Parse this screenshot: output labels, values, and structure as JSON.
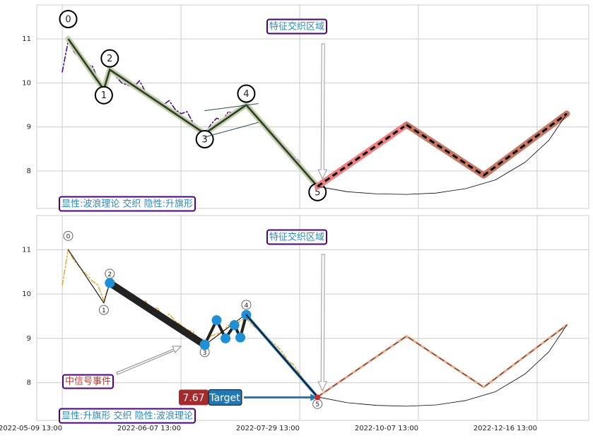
{
  "chart_data": [
    {
      "type": "line",
      "annotation": "特征交织区域",
      "footnote": "显性:波浪理论 交织 隐性:升旗形",
      "xlim": [
        -4.3,
        88.7
      ],
      "ylim": [
        7.15,
        11.77
      ],
      "yticks": [
        8,
        9,
        10,
        11
      ],
      "grid": true,
      "series": [
        {
          "color": "#4b0082",
          "linestyle": "dashdot",
          "linewidth": 1.5,
          "x": [
            0,
            1,
            2,
            3,
            4,
            5,
            6,
            7,
            8,
            9,
            10,
            11,
            12,
            13,
            14,
            15,
            16,
            17,
            18,
            19,
            20,
            21,
            22,
            23,
            24,
            25,
            26,
            27,
            28,
            29,
            30,
            31,
            32,
            33,
            34,
            35,
            36,
            37,
            38,
            39,
            40,
            41,
            42,
            43
          ],
          "values": [
            10.25,
            10.95,
            10.7,
            10.55,
            10.35,
            10.4,
            10.1,
            9.9,
            10.3,
            10.15,
            10.0,
            9.95,
            9.9,
            10.05,
            9.8,
            9.7,
            9.65,
            9.5,
            9.6,
            9.4,
            9.3,
            9.35,
            9.1,
            9.0,
            8.85,
            9.05,
            9.2,
            9.15,
            9.35,
            9.3,
            9.45,
            9.5,
            9.3,
            9.15,
            9.0,
            8.95,
            8.8,
            8.6,
            8.5,
            8.35,
            8.2,
            7.95,
            7.8,
            7.65
          ]
        },
        {
          "color": "#c5d1a8",
          "inner_color": "#2f3f2f",
          "linestyle": "solid",
          "linewidth": 8,
          "x": [
            1,
            7,
            8,
            24,
            31,
            43
          ],
          "values": [
            11.0,
            9.85,
            10.3,
            8.85,
            9.5,
            7.65
          ],
          "labels": [
            "0",
            "1",
            "2",
            "3",
            "4",
            "5"
          ]
        },
        {
          "color": "#2f4f4f",
          "linestyle": "solid",
          "linewidth": 1,
          "x": [
            24,
            33
          ],
          "values": [
            9.37,
            9.53
          ]
        },
        {
          "color": "#2f4f4f",
          "linestyle": "solid",
          "linewidth": 1,
          "x": [
            24,
            33
          ],
          "values": [
            8.77,
            9.1
          ]
        },
        {
          "color": "#f08080",
          "inner_color": "#000000",
          "linestyle": "dashed",
          "linewidth": 9,
          "x": [
            43,
            58
          ],
          "values": [
            7.65,
            9.05
          ]
        },
        {
          "color": "#c87860",
          "inner_color": "#000000",
          "linestyle": "dashed",
          "linewidth": 9,
          "x": [
            58,
            71,
            85
          ],
          "values": [
            9.05,
            7.9,
            9.3
          ]
        },
        {
          "color": "#000000",
          "linestyle": "solid",
          "linewidth": 0.8,
          "x": [
            43,
            48,
            53,
            58,
            63,
            68,
            73,
            78,
            82,
            85
          ],
          "values": [
            7.65,
            7.53,
            7.48,
            7.47,
            7.5,
            7.6,
            7.8,
            8.2,
            8.7,
            9.3
          ]
        }
      ]
    },
    {
      "type": "line",
      "annotation": "特征交织区域",
      "footnote": "显性:升旗形 交织 隐性:波浪理论",
      "signal": "中信号事件",
      "xlim": [
        -4.3,
        88.7
      ],
      "ylim": [
        7.15,
        11.77
      ],
      "yticks": [
        8,
        9,
        10,
        11
      ],
      "grid": true,
      "xticks": [
        {
          "value": 0,
          "label": "2022-05-09 13:00"
        },
        {
          "value": 20,
          "label": "2022-06-07 13:00"
        },
        {
          "value": 40,
          "label": "2022-07-29 13:00"
        },
        {
          "value": 60,
          "label": "2022-10-07 13:00"
        },
        {
          "value": 80,
          "label": "2022-12-16 13:00"
        }
      ],
      "target": {
        "value": 7.67,
        "label": "Target"
      },
      "series": [
        {
          "color": "#e8a72a",
          "linestyle": "dashdot",
          "linewidth": 1.5,
          "x": [
            0,
            1,
            2,
            3,
            4,
            5,
            6,
            7,
            8,
            9,
            10,
            11,
            12,
            13,
            14,
            15,
            16,
            17,
            18,
            19,
            20,
            21,
            22,
            23,
            24,
            25,
            26,
            27,
            28,
            29,
            30,
            31,
            32,
            33,
            34,
            35,
            36,
            37,
            38,
            39,
            40,
            41,
            42,
            43
          ],
          "values": [
            10.2,
            11.0,
            10.75,
            10.6,
            10.45,
            10.3,
            10.2,
            9.85,
            10.25,
            10.15,
            10.1,
            9.9,
            10.0,
            9.75,
            9.85,
            9.6,
            9.7,
            9.45,
            9.55,
            9.4,
            9.3,
            9.2,
            9.15,
            9.0,
            8.9,
            9.05,
            9.1,
            9.15,
            9.3,
            9.25,
            9.4,
            9.45,
            9.3,
            9.2,
            9.1,
            8.95,
            8.85,
            8.7,
            8.5,
            8.4,
            8.2,
            8.0,
            7.8,
            7.68
          ]
        },
        {
          "color": "#000000",
          "linestyle": "solid",
          "linewidth": 1,
          "x": [
            1,
            7,
            8,
            24,
            31,
            43
          ],
          "values": [
            11.0,
            9.8,
            10.25,
            8.85,
            9.55,
            7.68
          ],
          "labels": [
            "0",
            "1",
            "2",
            "3",
            "4",
            "5"
          ]
        },
        {
          "color": "#222222",
          "linestyle": "solid",
          "linewidth": 10,
          "marker_color": "#1e90d8",
          "x": [
            8,
            24
          ],
          "values": [
            10.25,
            8.85
          ]
        },
        {
          "color": "#222222",
          "linestyle": "solid",
          "linewidth": 4,
          "marker_color": "#1e90d8",
          "x": [
            24,
            26,
            27.5,
            29,
            30,
            31
          ],
          "values": [
            8.86,
            9.41,
            9.0,
            9.3,
            9.02,
            9.53
          ]
        },
        {
          "color": "#1f77b4",
          "inner_color": "#000000",
          "linestyle": "solid",
          "linewidth": 4,
          "x": [
            31,
            43
          ],
          "values": [
            9.53,
            7.68
          ]
        },
        {
          "color": "#f4a582",
          "inner_color": "#333333",
          "linestyle": "dashed",
          "linewidth": 3,
          "x": [
            43,
            58,
            71,
            85
          ],
          "values": [
            7.68,
            9.05,
            7.9,
            9.3
          ]
        },
        {
          "color": "#000000",
          "linestyle": "solid",
          "linewidth": 0.8,
          "x": [
            43,
            48,
            53,
            58,
            63,
            68,
            73,
            78,
            82,
            85
          ],
          "values": [
            7.68,
            7.55,
            7.49,
            7.47,
            7.5,
            7.6,
            7.8,
            8.2,
            8.7,
            9.3
          ]
        }
      ]
    }
  ]
}
